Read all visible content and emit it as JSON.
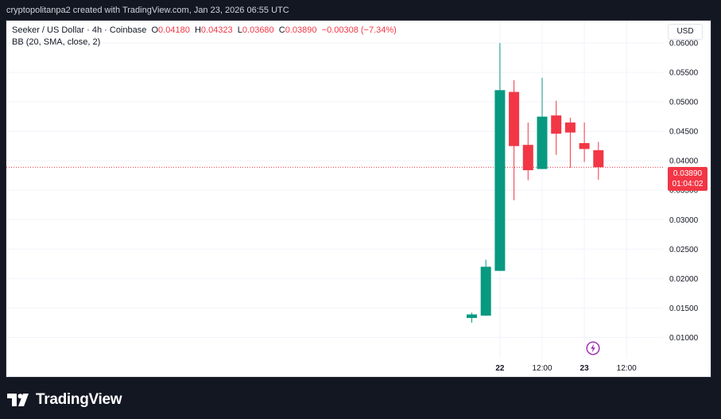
{
  "header": {
    "created_by": "cryptopolitanpa2 created with TradingView.com, Jan 23, 2026 06:55 UTC"
  },
  "legend": {
    "symbol": "Seeker / US Dollar · 4h · Coinbase",
    "o_label": "O",
    "o_value": "0.04180",
    "h_label": "H",
    "h_value": "0.04323",
    "l_label": "L",
    "l_value": "0.03680",
    "c_label": "C",
    "c_value": "0.03890",
    "change": "−0.00308 (−7.34%)",
    "indicator": "BB (20, SMA, close, 2)"
  },
  "currency_button": "USD",
  "price_tag": {
    "price": "0.03890",
    "countdown": "01:04:02"
  },
  "footer": {
    "brand": "TradingView"
  },
  "colors": {
    "up": "#089981",
    "down": "#f23645",
    "background": "#ffffff",
    "outer_background": "#131722"
  },
  "chart_data": {
    "type": "candlestick",
    "y_ticks": [
      "0.06000",
      "0.05500",
      "0.05000",
      "0.04500",
      "0.04000",
      "0.03500",
      "0.03000",
      "0.02500",
      "0.02000",
      "0.01500",
      "0.01000"
    ],
    "ylim": [
      0.0064,
      0.0638
    ],
    "x_ticks": [
      {
        "label": "22",
        "index": 2,
        "bold": true
      },
      {
        "label": "12:00",
        "index": 5,
        "bold": false
      },
      {
        "label": "23",
        "index": 8,
        "bold": true
      },
      {
        "label": "12:00",
        "index": 11,
        "bold": false
      }
    ],
    "last_price": 0.0389,
    "candles": [
      {
        "o": 0.0133,
        "h": 0.0142,
        "l": 0.0125,
        "c": 0.0139
      },
      {
        "o": 0.0137,
        "h": 0.0232,
        "l": 0.0137,
        "c": 0.022
      },
      {
        "o": 0.0213,
        "h": 0.06,
        "l": 0.0213,
        "c": 0.052
      },
      {
        "o": 0.0517,
        "h": 0.0537,
        "l": 0.0333,
        "c": 0.0425
      },
      {
        "o": 0.0427,
        "h": 0.0465,
        "l": 0.0367,
        "c": 0.0384
      },
      {
        "o": 0.0386,
        "h": 0.0541,
        "l": 0.0386,
        "c": 0.0475
      },
      {
        "o": 0.0477,
        "h": 0.0502,
        "l": 0.041,
        "c": 0.0446
      },
      {
        "o": 0.0465,
        "h": 0.0473,
        "l": 0.0388,
        "c": 0.0448
      },
      {
        "o": 0.043,
        "h": 0.0465,
        "l": 0.0398,
        "c": 0.042
      },
      {
        "o": 0.0418,
        "h": 0.0432,
        "l": 0.0368,
        "c": 0.0389
      }
    ]
  }
}
